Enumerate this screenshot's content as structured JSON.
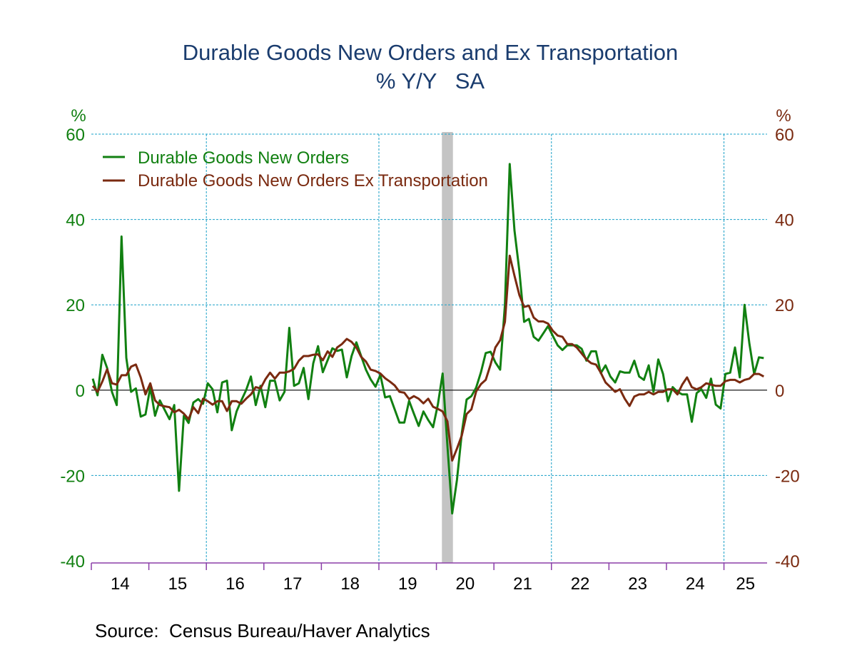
{
  "chart_data": {
    "type": "line",
    "title": "Durable Goods New Orders and Ex Transportation",
    "subtitle": "% Y/Y   SA",
    "source": "Source:  Census Bureau/Haver Analytics",
    "y_unit_left": "%",
    "y_unit_right": "%",
    "ylim": [
      -40,
      60
    ],
    "y_ticks": [
      60,
      40,
      20,
      0,
      -20,
      -40
    ],
    "x_tick_labels": [
      "14",
      "15",
      "16",
      "17",
      "18",
      "19",
      "20",
      "21",
      "22",
      "23",
      "24",
      "25"
    ],
    "x_start": "2014-01",
    "x_end": "2025-09",
    "frequency": "monthly",
    "grid": true,
    "legend_position": "top-left",
    "recession_shading": {
      "start": "2020-02",
      "end": "2020-04",
      "color": "#c4c4c4"
    },
    "series": [
      {
        "name": "Durable Goods New Orders",
        "color": "#118011",
        "axis": "left",
        "values": [
          2.7,
          -1.2,
          8.3,
          5.2,
          -0.4,
          -3.5,
          36,
          7.6,
          -0.4,
          0.4,
          -6.2,
          -5.7,
          0.7,
          -6,
          -2.4,
          -4.6,
          -6.8,
          -3.5,
          -23.6,
          -6,
          -7.7,
          -2.9,
          -2.1,
          -3.2,
          1.6,
          0.2,
          -5.2,
          1.8,
          2.2,
          -9.4,
          -5,
          -2.4,
          0,
          3.2,
          -3.5,
          1,
          -4,
          2.2,
          2.2,
          -2.4,
          -0.4,
          14.6,
          1,
          1.6,
          5.2,
          -2.1,
          6.3,
          10.3,
          4.2,
          7,
          9.8,
          9.2,
          9.5,
          3,
          8,
          11.2,
          8,
          4.8,
          2.5,
          0.8,
          3.6,
          -1.7,
          -1.4,
          -4.5,
          -7.6,
          -7.6,
          -2.5,
          -5.5,
          -8.4,
          -5,
          -7,
          -8.7,
          -3.4,
          3.9,
          -13,
          -28.9,
          -21,
          -10,
          -2.2,
          -1.4,
          0.6,
          4.2,
          8.7,
          9,
          6.5,
          4.8,
          20,
          53,
          37.4,
          28,
          16,
          16.7,
          12.5,
          11.6,
          13.3,
          15,
          12.7,
          10.5,
          9.4,
          10.5,
          10.5,
          10.5,
          9.7,
          6.9,
          9.1,
          9.1,
          4,
          5.8,
          3.2,
          1.8,
          4.4,
          4.1,
          4.1,
          6.9,
          3.2,
          2.4,
          5.8,
          -0.4,
          7.2,
          3.8,
          -2.6,
          0.7,
          -0.4,
          -1,
          -1,
          -7.4,
          -0.7,
          0.2,
          -1.8,
          2.7,
          -3.4,
          -4.3,
          3.8,
          4.1,
          10,
          3,
          20,
          11,
          3.8,
          7.7,
          7.5
        ]
      },
      {
        "name": "Durable Goods New Orders Ex Transportation",
        "color": "#7a2a10",
        "axis": "right",
        "values": [
          1,
          -0.4,
          2,
          4.9,
          1.6,
          1.3,
          3.5,
          3.5,
          5.5,
          6,
          3,
          -1,
          1.6,
          -2.4,
          -3.5,
          -3.8,
          -4,
          -5.2,
          -4.6,
          -5.5,
          -6.8,
          -4,
          -5.4,
          -2,
          -2.6,
          -3.4,
          -2.6,
          -2.6,
          -4.9,
          -2.6,
          -2.6,
          -3.2,
          -2,
          -1,
          0.7,
          0.4,
          2.5,
          4.1,
          2.7,
          4.1,
          4.1,
          4.4,
          5,
          6.9,
          8,
          8,
          8.3,
          8.4,
          7,
          9.1,
          7.8,
          10,
          10.8,
          12,
          11.3,
          10,
          7.8,
          6.7,
          4.8,
          4.5,
          3.9,
          2.8,
          2,
          1.1,
          -0.4,
          -0.6,
          -2.1,
          -1.4,
          -2,
          -3.1,
          -2,
          -3.9,
          -4.4,
          -5,
          -7.3,
          -16.5,
          -13.7,
          -10.6,
          -5.6,
          -4.5,
          -0.3,
          1.4,
          2.4,
          6,
          10,
          11.7,
          16,
          31.5,
          26.8,
          22.3,
          19.5,
          19.8,
          17,
          16.1,
          16.1,
          15.6,
          13.9,
          12.8,
          12.5,
          10.8,
          10.8,
          10,
          8.6,
          7.2,
          6.3,
          6,
          4.1,
          1.8,
          0.7,
          -0.4,
          0.2,
          -2,
          -3.7,
          -1.5,
          -1,
          -1,
          -0.4,
          -1,
          -0.4,
          -0.4,
          0.2,
          0.2,
          -1,
          1.3,
          3,
          0.7,
          0.2,
          0.7,
          1.6,
          1.3,
          1,
          1,
          2.1,
          2.4,
          2.4,
          1.8,
          2.4,
          2.7,
          3.8,
          3.8,
          3.2
        ]
      }
    ],
    "colors": {
      "title": "#1a3c6e",
      "left_axis": "#118011",
      "right_axis": "#7a2a10",
      "x_axis": "#8b3fa8",
      "grid": "#1aa0c8"
    }
  }
}
